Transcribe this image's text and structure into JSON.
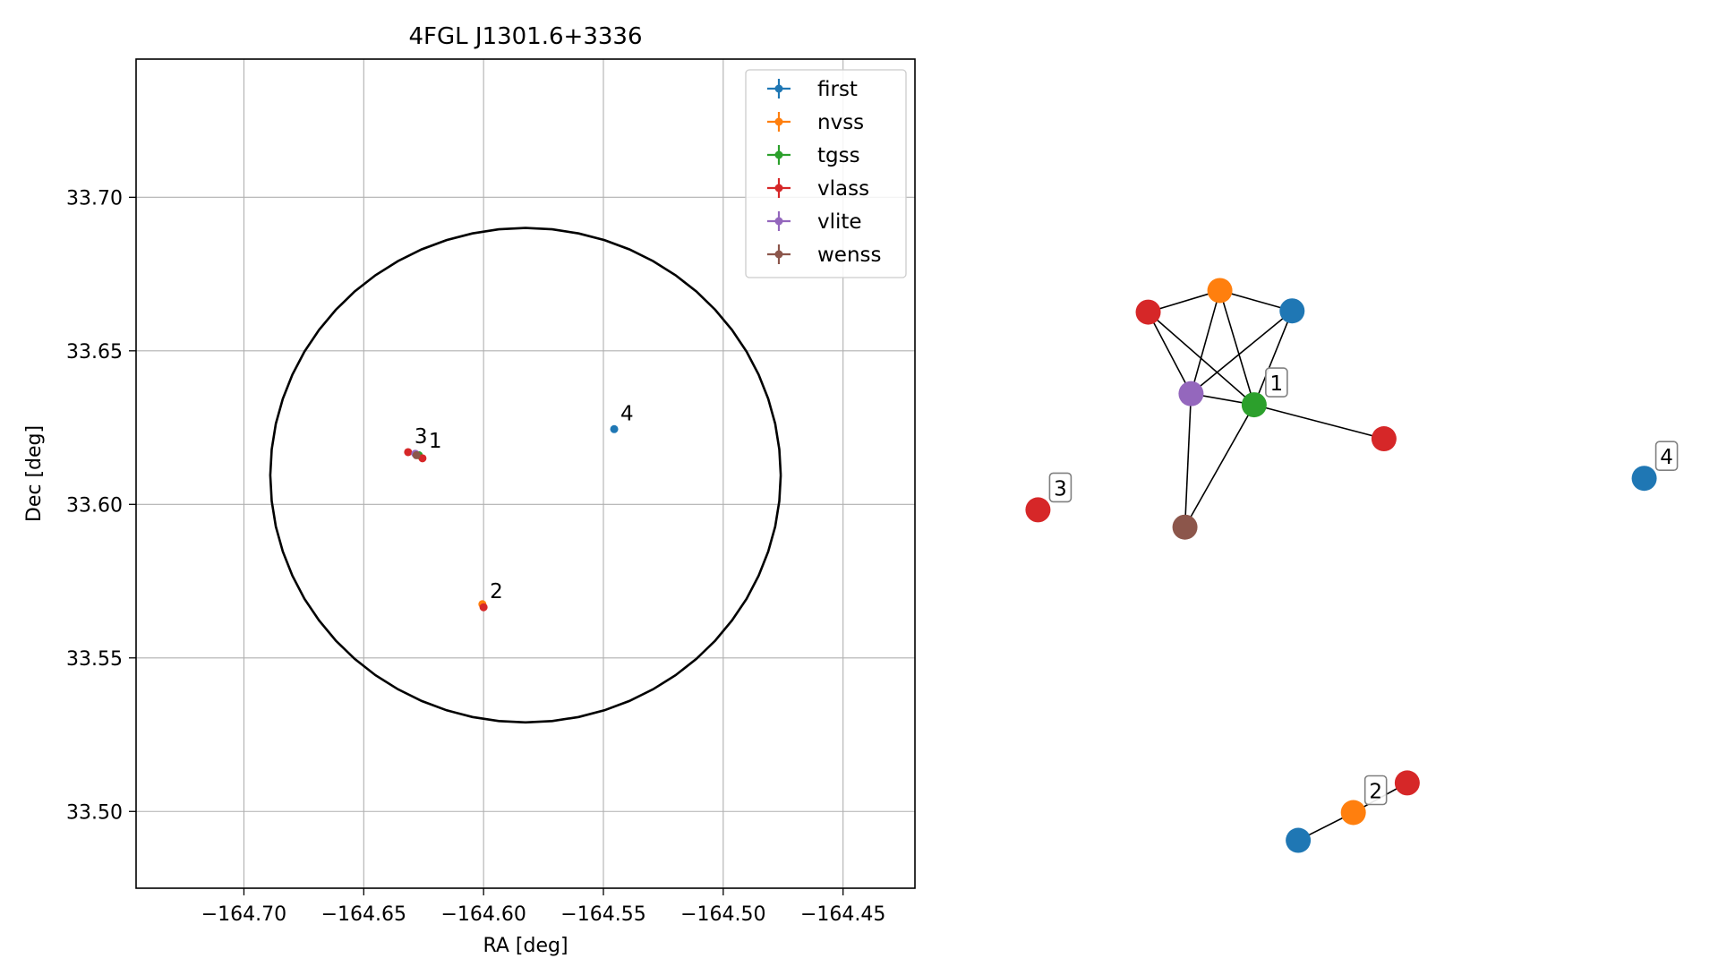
{
  "chart_data": [
    {
      "type": "scatter",
      "title": "4FGL J1301.6+3336",
      "xlabel": "RA [deg]",
      "ylabel": "Dec [deg]",
      "xlim": [
        -164.745,
        -164.42
      ],
      "ylim": [
        33.475,
        33.745
      ],
      "xticks": [
        -164.7,
        -164.65,
        -164.6,
        -164.55,
        -164.5,
        -164.45
      ],
      "xtick_labels": [
        "−164.70",
        "−164.65",
        "−164.60",
        "−164.55",
        "−164.50",
        "−164.45"
      ],
      "yticks": [
        33.5,
        33.55,
        33.6,
        33.65,
        33.7
      ],
      "ytick_labels": [
        "33.50",
        "33.55",
        "33.60",
        "33.65",
        "33.70"
      ],
      "grid": true,
      "legend_position": "top-right",
      "ellipse": {
        "center_ra": -164.5825,
        "center_dec": 33.6095,
        "semi_ra": 0.1065,
        "semi_dec": 0.0805
      },
      "series": [
        {
          "name": "first",
          "color": "#1f77b4",
          "points": [
            [
              -164.5455,
              33.6245
            ]
          ]
        },
        {
          "name": "nvss",
          "color": "#ff7f0e",
          "points": [
            [
              -164.6005,
              33.5675
            ]
          ]
        },
        {
          "name": "tgss",
          "color": "#2ca02c",
          "points": [
            [
              -164.627,
              33.616
            ]
          ]
        },
        {
          "name": "vlass",
          "color": "#d62728",
          "points": [
            [
              -164.6315,
              33.617
            ],
            [
              -164.6255,
              33.615
            ],
            [
              -164.6,
              33.5665
            ]
          ]
        },
        {
          "name": "vlite",
          "color": "#9467bd",
          "points": [
            [
              -164.6285,
              33.6165
            ]
          ]
        },
        {
          "name": "wenss",
          "color": "#8c564b",
          "points": [
            [
              -164.628,
              33.616
            ]
          ]
        }
      ],
      "annotations": [
        {
          "label": "1",
          "ra": -164.6255,
          "dec": 33.6155
        },
        {
          "label": "2",
          "ra": -164.6,
          "dec": 33.5665
        },
        {
          "label": "3",
          "ra": -164.6315,
          "dec": 33.617
        },
        {
          "label": "4",
          "ra": -164.5455,
          "dec": 33.6245
        }
      ]
    },
    {
      "type": "network",
      "nodes": [
        {
          "id": "n_red_a",
          "color": "#d62728",
          "x": 0.185,
          "y": 0.86
        },
        {
          "id": "n_orange_a",
          "color": "#ff7f0e",
          "x": 0.302,
          "y": 0.895
        },
        {
          "id": "n_blue_a",
          "color": "#1f77b4",
          "x": 0.42,
          "y": 0.862
        },
        {
          "id": "n_purple",
          "color": "#9467bd",
          "x": 0.255,
          "y": 0.728
        },
        {
          "id": "n_green",
          "color": "#2ca02c",
          "x": 0.358,
          "y": 0.71
        },
        {
          "id": "n_red_b",
          "color": "#d62728",
          "x": 0.57,
          "y": 0.655
        },
        {
          "id": "n_brown",
          "color": "#8c564b",
          "x": 0.245,
          "y": 0.512
        },
        {
          "id": "n_red_c",
          "color": "#d62728",
          "x": 0.005,
          "y": 0.54
        },
        {
          "id": "n_blue_b",
          "color": "#1f77b4",
          "x": 0.995,
          "y": 0.591
        },
        {
          "id": "n_blue_c",
          "color": "#1f77b4",
          "x": 0.43,
          "y": 0.005
        },
        {
          "id": "n_orange_b",
          "color": "#ff7f0e",
          "x": 0.52,
          "y": 0.05
        },
        {
          "id": "n_red_d",
          "color": "#d62728",
          "x": 0.608,
          "y": 0.098
        }
      ],
      "edges": [
        [
          "n_red_a",
          "n_orange_a"
        ],
        [
          "n_orange_a",
          "n_blue_a"
        ],
        [
          "n_red_a",
          "n_purple"
        ],
        [
          "n_red_a",
          "n_green"
        ],
        [
          "n_orange_a",
          "n_purple"
        ],
        [
          "n_orange_a",
          "n_green"
        ],
        [
          "n_blue_a",
          "n_purple"
        ],
        [
          "n_blue_a",
          "n_green"
        ],
        [
          "n_purple",
          "n_green"
        ],
        [
          "n_purple",
          "n_brown"
        ],
        [
          "n_green",
          "n_brown"
        ],
        [
          "n_green",
          "n_red_b"
        ],
        [
          "n_blue_c",
          "n_orange_b"
        ],
        [
          "n_orange_b",
          "n_red_d"
        ]
      ],
      "labels": [
        {
          "label": "1",
          "node": "n_green"
        },
        {
          "label": "2",
          "node": "n_orange_b"
        },
        {
          "label": "3",
          "node": "n_red_c"
        },
        {
          "label": "4",
          "node": "n_blue_b"
        }
      ]
    }
  ]
}
